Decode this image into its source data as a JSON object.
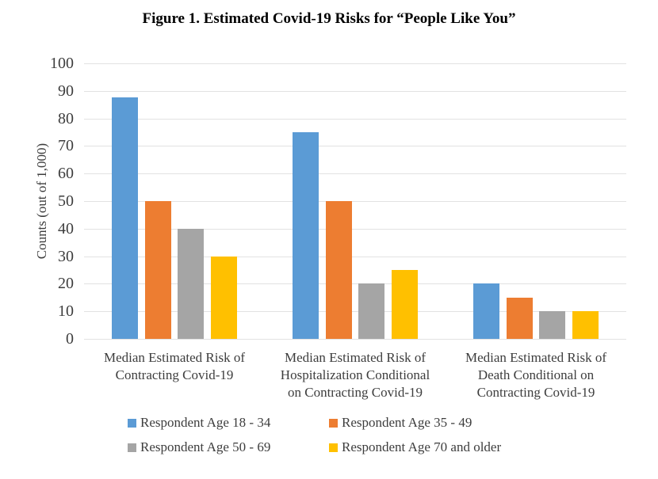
{
  "chart_data": {
    "type": "bar",
    "title": "Figure 1. Estimated Covid-19 Risks for “People Like You”",
    "ylabel": "Counts (out of 1,000)",
    "xlabel": "",
    "ylim": [
      0,
      100
    ],
    "yticks": [
      0,
      10,
      20,
      30,
      40,
      50,
      60,
      70,
      80,
      90,
      100
    ],
    "grid": true,
    "legend_position": "bottom",
    "categories": [
      "Median Estimated Risk of\nContracting Covid-19",
      "Median Estimated Risk of\nHospitalization Conditional\non Contracting Covid-19",
      "Median Estimated Risk of\nDeath Conditional on\nContracting Covid-19"
    ],
    "series": [
      {
        "name": "Respondent Age 18 - 34",
        "color": "#5B9BD5",
        "values": [
          87.5,
          75,
          20
        ]
      },
      {
        "name": "Respondent Age 35 - 49",
        "color": "#ED7D31",
        "values": [
          50,
          50,
          15
        ]
      },
      {
        "name": "Respondent Age 50 - 69",
        "color": "#A5A5A5",
        "values": [
          40,
          20,
          10
        ]
      },
      {
        "name": "Respondent Age 70 and older",
        "color": "#FFC000",
        "values": [
          30,
          25,
          10
        ]
      }
    ]
  }
}
